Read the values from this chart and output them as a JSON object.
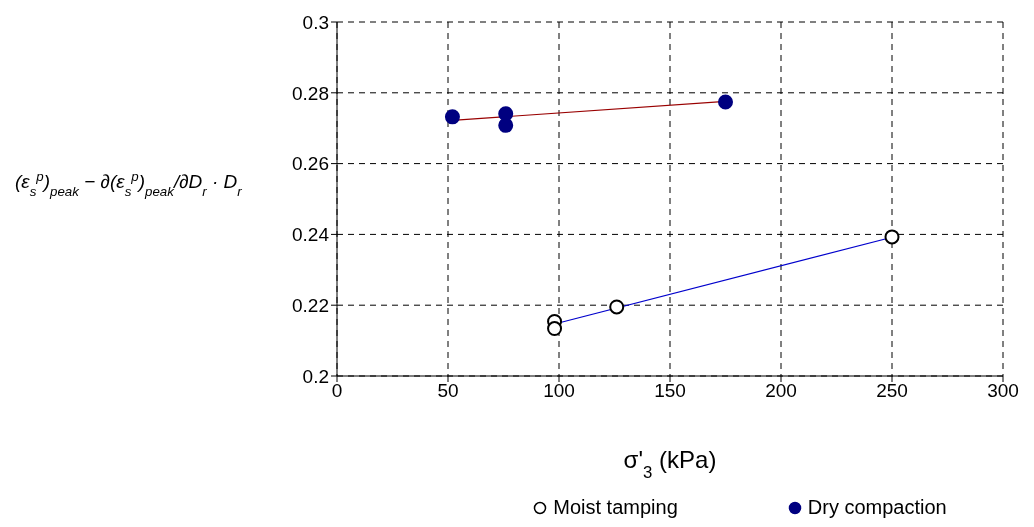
{
  "chart_data": {
    "type": "scatter",
    "xlabel": "σ'$_{3}$ (kPa)",
    "ylabel": "(ε$_{s}$$^{p}$)$_{peak}$ − ∂(ε$_{s}$$^{p}$)$_{peak}$/∂D$_{r}$ · D$_{r}$",
    "xlim": [
      0,
      300
    ],
    "xticks": [
      0,
      50,
      100,
      150,
      200,
      250,
      300
    ],
    "ylim": [
      0.2,
      0.3
    ],
    "yticks": [
      0.2,
      0.22,
      0.24,
      0.26,
      0.28,
      0.3
    ],
    "grid": true,
    "legend": "bottom",
    "marker": "circle",
    "series": [
      {
        "name": "Moist tamping",
        "color": "#000000",
        "x": [
          98,
          98,
          126,
          250
        ],
        "values": [
          0.2154,
          0.2134,
          0.2195,
          0.2393
        ]
      },
      {
        "name": "Dry compaction",
        "color": "#000080",
        "x": [
          52,
          76,
          76,
          175
        ],
        "values": [
          0.2732,
          0.2741,
          0.2708,
          0.2774
        ]
      },
      {
        "type": "line",
        "marker": "none",
        "color": "#0000cc",
        "x": [
          98,
          250
        ],
        "values": [
          0.2147,
          0.2392
        ]
      },
      {
        "type": "line",
        "marker": "none",
        "color": "#990000",
        "x": [
          52,
          175
        ],
        "values": [
          0.2722,
          0.2776
        ]
      }
    ]
  }
}
